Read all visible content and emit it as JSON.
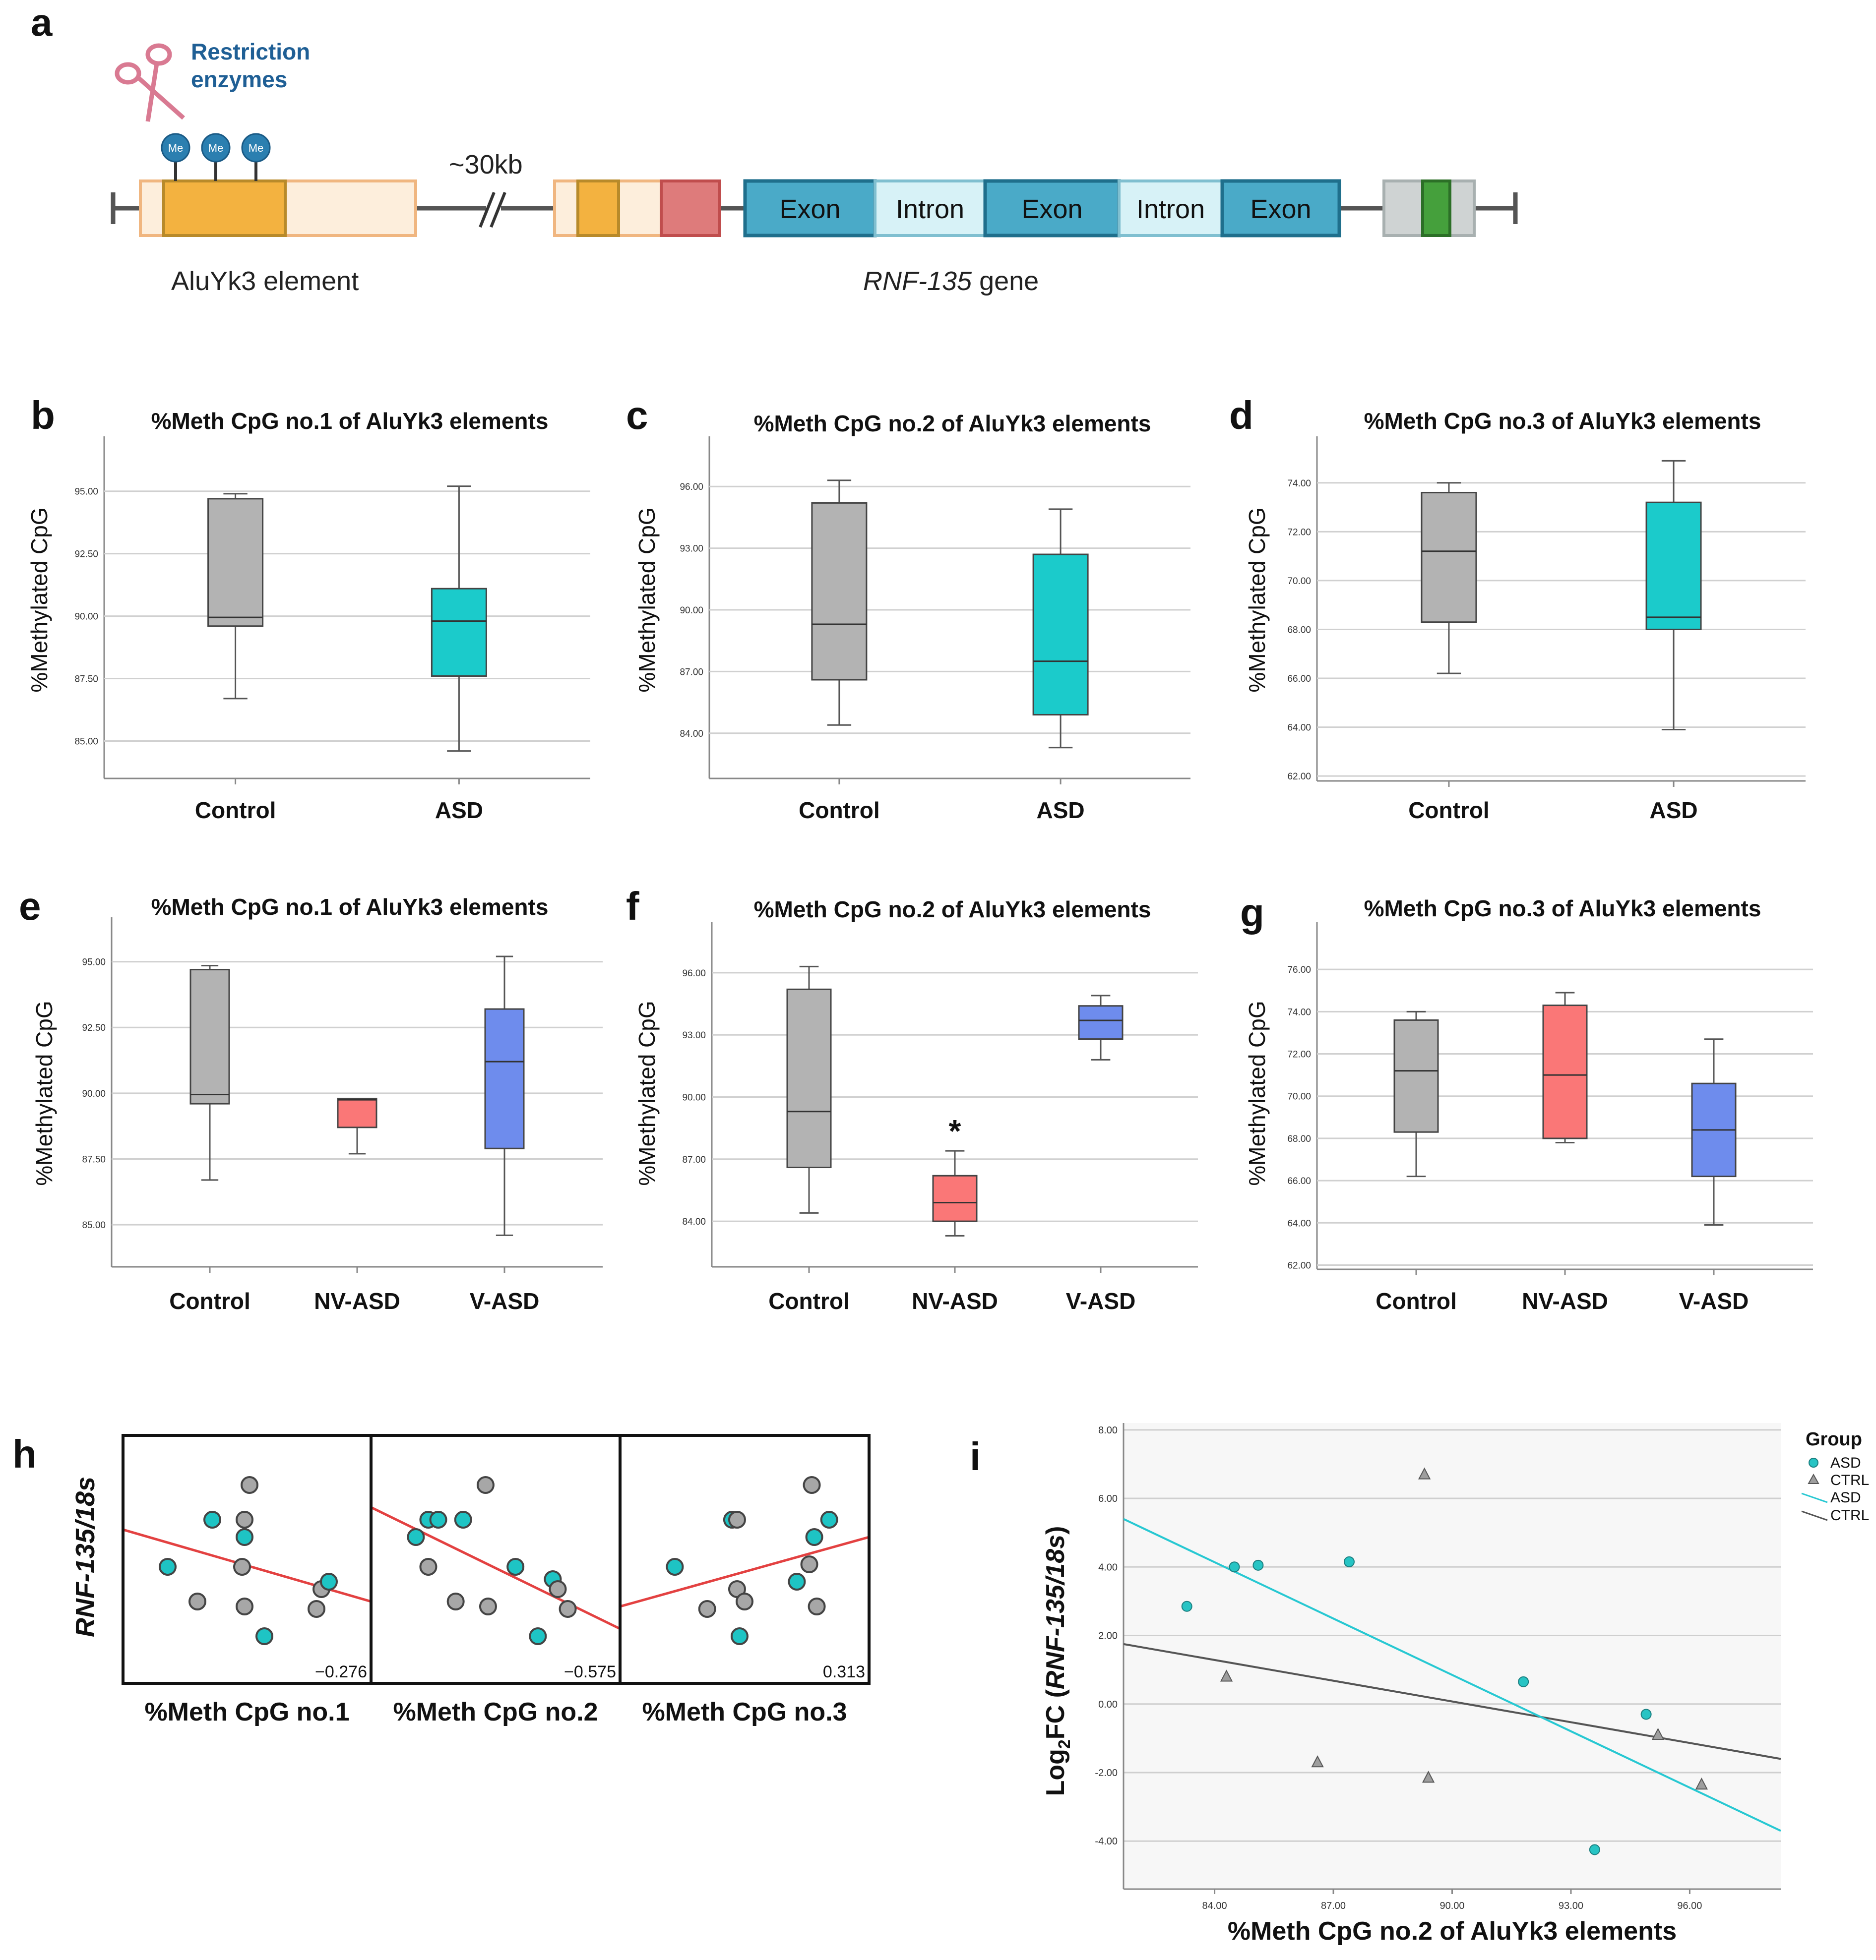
{
  "panel_a": {
    "letter": "a",
    "restriction_line1": "Restriction",
    "restriction_line2": "enzymes",
    "me_label": "Me",
    "distance_label": "~30kb",
    "alu_label": "AluYk3 element",
    "gene_italic": "RNF-135",
    "gene_suffix": " gene",
    "exon_label": "Exon",
    "intron_label": "Intron",
    "colors": {
      "alu_dark": "#f3b240",
      "alu_light": "#fdeedc",
      "red_block": "#de7b7b",
      "exon": "#4aaac8",
      "intron": "#d7f2f7",
      "grey_block": "#cfd3d3",
      "green_block": "#45a03c",
      "me_ball": "#2b7fb0",
      "scissors": "#d97a92"
    }
  },
  "chart_data": [
    {
      "id": "b",
      "type": "box",
      "letter": "b",
      "title": "%Meth CpG no.1 of AluYk3 elements",
      "ylabel": "%Methylated CpG",
      "categories": [
        "Control",
        "ASD"
      ],
      "ylim": [
        83.5,
        97
      ],
      "yticks": [
        85.0,
        87.5,
        90.0,
        92.5,
        95.0
      ],
      "boxes": [
        {
          "min": 86.7,
          "q1": 89.6,
          "median": 89.95,
          "q3": 94.7,
          "max": 94.9,
          "color": "#b3b3b3"
        },
        {
          "min": 84.6,
          "q1": 87.6,
          "median": 89.8,
          "q3": 91.1,
          "max": 95.2,
          "color": "#1bcbcb"
        }
      ]
    },
    {
      "id": "c",
      "type": "box",
      "letter": "c",
      "title": "%Meth CpG no.2 of AluYk3 elements",
      "ylabel": "%Methylated CpG",
      "categories": [
        "Control",
        "ASD"
      ],
      "ylim": [
        81.8,
        98.2
      ],
      "yticks": [
        84.0,
        87.0,
        90.0,
        93.0,
        96.0
      ],
      "boxes": [
        {
          "min": 84.4,
          "q1": 86.6,
          "median": 89.3,
          "q3": 95.2,
          "max": 96.3,
          "color": "#b3b3b3"
        },
        {
          "min": 83.3,
          "q1": 84.9,
          "median": 87.5,
          "q3": 92.7,
          "max": 94.9,
          "color": "#1bcbcb"
        }
      ]
    },
    {
      "id": "d",
      "type": "box",
      "letter": "d",
      "title": "%Meth CpG no.3 of AluYk3 elements",
      "ylabel": "%Methylated CpG",
      "categories": [
        "Control",
        "ASD"
      ],
      "ylim": [
        61.8,
        75.7
      ],
      "yticks": [
        62.0,
        64.0,
        66.0,
        68.0,
        70.0,
        72.0,
        74.0
      ],
      "boxes": [
        {
          "min": 66.2,
          "q1": 68.3,
          "median": 71.2,
          "q3": 73.6,
          "max": 74.0,
          "color": "#b3b3b3"
        },
        {
          "min": 63.9,
          "q1": 68.0,
          "median": 68.5,
          "q3": 73.2,
          "max": 74.9,
          "color": "#1bcbcb"
        }
      ]
    },
    {
      "id": "e",
      "type": "box",
      "letter": "e",
      "title": "%Meth CpG no.1 of AluYk3 elements",
      "ylabel": "%Methylated CpG",
      "categories": [
        "Control",
        "NV-ASD",
        "V-ASD"
      ],
      "ylim": [
        83.4,
        96.5
      ],
      "yticks": [
        85.0,
        87.5,
        90.0,
        92.5,
        95.0
      ],
      "boxes": [
        {
          "min": 86.7,
          "q1": 89.6,
          "median": 89.95,
          "q3": 94.7,
          "max": 94.85,
          "color": "#b3b3b3"
        },
        {
          "min": 87.7,
          "q1": 88.7,
          "median": 89.75,
          "q3": 89.8,
          "max": 89.8,
          "color": "#fa7777"
        },
        {
          "min": 84.6,
          "q1": 87.9,
          "median": 91.2,
          "q3": 93.2,
          "max": 95.2,
          "color": "#6e8ced"
        }
      ]
    },
    {
      "id": "f",
      "type": "box",
      "letter": "f",
      "title": "%Meth CpG no.2 of AluYk3 elements",
      "ylabel": "%Methylated CpG",
      "categories": [
        "Control",
        "NV-ASD",
        "V-ASD"
      ],
      "ylim": [
        81.8,
        98.2
      ],
      "yticks": [
        84.0,
        87.0,
        90.0,
        93.0,
        96.0
      ],
      "annotation": "*",
      "boxes": [
        {
          "min": 84.4,
          "q1": 86.6,
          "median": 89.3,
          "q3": 95.2,
          "max": 96.3,
          "color": "#b3b3b3"
        },
        {
          "min": 83.3,
          "q1": 84.0,
          "median": 84.9,
          "q3": 86.2,
          "max": 87.4,
          "color": "#fa7777"
        },
        {
          "min": 91.8,
          "q1": 92.8,
          "median": 93.7,
          "q3": 94.4,
          "max": 94.9,
          "color": "#6e8ced"
        }
      ]
    },
    {
      "id": "g",
      "type": "box",
      "letter": "g",
      "title": "%Meth CpG no.3 of AluYk3 elements",
      "ylabel": "%Methylated CpG",
      "categories": [
        "Control",
        "NV-ASD",
        "V-ASD"
      ],
      "ylim": [
        61.8,
        78.0
      ],
      "yticks": [
        62.0,
        64.0,
        66.0,
        68.0,
        70.0,
        72.0,
        74.0,
        76.0
      ],
      "boxes": [
        {
          "min": 66.2,
          "q1": 68.3,
          "median": 71.2,
          "q3": 73.6,
          "max": 74.0,
          "color": "#b3b3b3"
        },
        {
          "min": 67.8,
          "q1": 68.0,
          "median": 71.0,
          "q3": 74.3,
          "max": 74.9,
          "color": "#fa7777"
        },
        {
          "min": 63.9,
          "q1": 66.2,
          "median": 68.4,
          "q3": 70.6,
          "max": 72.7,
          "color": "#6e8ced"
        }
      ]
    },
    {
      "id": "h",
      "type": "scatter",
      "letter": "h",
      "ylabel": "RNF-135/18s",
      "subplots": [
        {
          "xlabel": "%Meth CpG no.1",
          "r": "−0.276",
          "line": [
            [
              0,
              0.38
            ],
            [
              1,
              0.67
            ]
          ],
          "points": [
            {
              "x": 0.51,
              "y": 0.2,
              "g": "CTRL"
            },
            {
              "x": 0.36,
              "y": 0.34,
              "g": "ASD"
            },
            {
              "x": 0.49,
              "y": 0.34,
              "g": "CTRL"
            },
            {
              "x": 0.49,
              "y": 0.41,
              "g": "ASD"
            },
            {
              "x": 0.18,
              "y": 0.53,
              "g": "ASD"
            },
            {
              "x": 0.48,
              "y": 0.53,
              "g": "CTRL"
            },
            {
              "x": 0.3,
              "y": 0.67,
              "g": "CTRL"
            },
            {
              "x": 0.49,
              "y": 0.69,
              "g": "CTRL"
            },
            {
              "x": 0.57,
              "y": 0.81,
              "g": "ASD"
            },
            {
              "x": 0.8,
              "y": 0.62,
              "g": "CTRL"
            },
            {
              "x": 0.83,
              "y": 0.59,
              "g": "ASD"
            },
            {
              "x": 0.78,
              "y": 0.7,
              "g": "CTRL"
            }
          ]
        },
        {
          "xlabel": "%Meth CpG no.2",
          "r": "−0.575",
          "line": [
            [
              0,
              0.29
            ],
            [
              1,
              0.78
            ]
          ],
          "points": [
            {
              "x": 0.46,
              "y": 0.2,
              "g": "CTRL"
            },
            {
              "x": 0.23,
              "y": 0.34,
              "g": "ASD"
            },
            {
              "x": 0.27,
              "y": 0.34,
              "g": "ASD"
            },
            {
              "x": 0.37,
              "y": 0.34,
              "g": "ASD"
            },
            {
              "x": 0.18,
              "y": 0.41,
              "g": "ASD"
            },
            {
              "x": 0.23,
              "y": 0.53,
              "g": "CTRL"
            },
            {
              "x": 0.58,
              "y": 0.53,
              "g": "ASD"
            },
            {
              "x": 0.34,
              "y": 0.67,
              "g": "CTRL"
            },
            {
              "x": 0.47,
              "y": 0.69,
              "g": "CTRL"
            },
            {
              "x": 0.73,
              "y": 0.58,
              "g": "ASD"
            },
            {
              "x": 0.75,
              "y": 0.62,
              "g": "CTRL"
            },
            {
              "x": 0.79,
              "y": 0.7,
              "g": "CTRL"
            },
            {
              "x": 0.67,
              "y": 0.81,
              "g": "ASD"
            }
          ]
        },
        {
          "xlabel": "%Meth CpG no.3",
          "r": "0.313",
          "line": [
            [
              0,
              0.69
            ],
            [
              1,
              0.41
            ]
          ],
          "points": [
            {
              "x": 0.77,
              "y": 0.2,
              "g": "CTRL"
            },
            {
              "x": 0.45,
              "y": 0.34,
              "g": "ASD"
            },
            {
              "x": 0.47,
              "y": 0.34,
              "g": "CTRL"
            },
            {
              "x": 0.84,
              "y": 0.34,
              "g": "ASD"
            },
            {
              "x": 0.78,
              "y": 0.41,
              "g": "ASD"
            },
            {
              "x": 0.22,
              "y": 0.53,
              "g": "ASD"
            },
            {
              "x": 0.76,
              "y": 0.52,
              "g": "CTRL"
            },
            {
              "x": 0.71,
              "y": 0.59,
              "g": "ASD"
            },
            {
              "x": 0.47,
              "y": 0.62,
              "g": "CTRL"
            },
            {
              "x": 0.5,
              "y": 0.67,
              "g": "CTRL"
            },
            {
              "x": 0.35,
              "y": 0.7,
              "g": "CTRL"
            },
            {
              "x": 0.79,
              "y": 0.69,
              "g": "CTRL"
            },
            {
              "x": 0.48,
              "y": 0.81,
              "g": "ASD"
            }
          ]
        }
      ]
    },
    {
      "id": "i",
      "type": "scatter",
      "letter": "i",
      "xlabel": "%Meth CpG no.2 of AluYk3 elements",
      "ylabel_prefix": "Log",
      "ylabel_sub": "2",
      "ylabel_mid": "FC (",
      "ylabel_italic": "RNF-135/18s",
      "ylabel_suffix": ")",
      "xlim": [
        81.7,
        98.3
      ],
      "ylim": [
        -5.4,
        8.2
      ],
      "xticks": [
        84.0,
        87.0,
        90.0,
        93.0,
        96.0
      ],
      "yticks": [
        -4.0,
        -2.0,
        0.0,
        2.0,
        4.0,
        6.0,
        8.0
      ],
      "asd_points": [
        [
          83.3,
          2.85
        ],
        [
          84.5,
          4.0
        ],
        [
          85.1,
          4.05
        ],
        [
          87.4,
          4.15
        ],
        [
          91.8,
          0.65
        ],
        [
          94.9,
          -0.3
        ],
        [
          93.6,
          -4.25
        ]
      ],
      "ctrl_points": [
        [
          84.3,
          0.8
        ],
        [
          86.6,
          -1.7
        ],
        [
          89.3,
          6.7
        ],
        [
          89.4,
          -2.15
        ],
        [
          95.2,
          -0.9
        ],
        [
          96.3,
          -2.35
        ]
      ],
      "asd_line": [
        [
          81.7,
          5.4
        ],
        [
          98.3,
          -3.7
        ]
      ],
      "ctrl_line": [
        [
          81.7,
          1.75
        ],
        [
          98.3,
          -1.6
        ]
      ],
      "legend": {
        "title": "Group",
        "items": [
          "ASD",
          "CTRL",
          "ASD",
          "CTRL"
        ]
      },
      "colors": {
        "asd": "#27c4c4",
        "ctrl": "#9e9e9e",
        "asd_line": "#27c8d2",
        "ctrl_line": "#555555"
      }
    }
  ]
}
